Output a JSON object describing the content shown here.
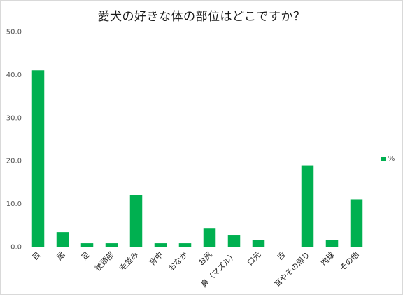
{
  "chart_data": {
    "type": "bar",
    "title": "愛犬の好きな体の部位はどこですか？",
    "xlabel": "",
    "ylabel": "",
    "ylim": [
      0,
      50
    ],
    "y_ticks": [
      "0.0",
      "10.0",
      "20.0",
      "30.0",
      "40.0",
      "50.0"
    ],
    "grid": false,
    "legend_position": "right",
    "categories": [
      "目",
      "尾",
      "足",
      "後頭部",
      "毛並み",
      "背中",
      "おなか",
      "お尻",
      "鼻（マズル）",
      "口元",
      "舌",
      "耳やその周り",
      "肉球",
      "その他"
    ],
    "series": [
      {
        "name": "%",
        "color": "#00b050",
        "values": [
          41.0,
          3.4,
          0.8,
          0.8,
          12.0,
          0.8,
          0.8,
          4.2,
          2.6,
          1.6,
          0.0,
          18.8,
          1.6,
          11.0
        ]
      }
    ]
  }
}
